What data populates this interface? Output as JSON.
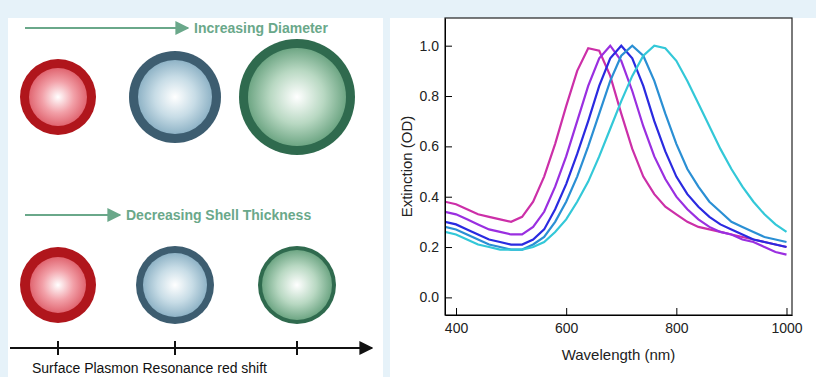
{
  "chart_data": {
    "type": "line",
    "xlabel": "Wavelength (nm)",
    "ylabel": "Extinction (OD)",
    "x": [
      380,
      400,
      420,
      440,
      460,
      480,
      500,
      520,
      540,
      560,
      580,
      600,
      620,
      640,
      660,
      680,
      700,
      720,
      740,
      760,
      780,
      800,
      820,
      840,
      860,
      880,
      900,
      920,
      940,
      960,
      980,
      1000
    ],
    "series": [
      {
        "color": "#cc2fa8",
        "values": [
          0.38,
          0.37,
          0.35,
          0.33,
          0.32,
          0.31,
          0.3,
          0.32,
          0.38,
          0.48,
          0.61,
          0.76,
          0.9,
          0.99,
          0.98,
          0.88,
          0.73,
          0.59,
          0.48,
          0.41,
          0.36,
          0.33,
          0.3,
          0.28,
          0.27,
          0.26,
          0.25,
          0.24,
          0.23,
          0.22,
          0.21,
          0.2
        ]
      },
      {
        "color": "#9a2fe0",
        "values": [
          0.34,
          0.33,
          0.31,
          0.29,
          0.27,
          0.26,
          0.25,
          0.25,
          0.28,
          0.34,
          0.44,
          0.56,
          0.7,
          0.84,
          0.95,
          1.0,
          0.94,
          0.82,
          0.68,
          0.56,
          0.47,
          0.4,
          0.35,
          0.31,
          0.28,
          0.26,
          0.25,
          0.23,
          0.22,
          0.2,
          0.18,
          0.17
        ]
      },
      {
        "color": "#2a2ae0",
        "values": [
          0.3,
          0.29,
          0.27,
          0.25,
          0.23,
          0.22,
          0.21,
          0.21,
          0.23,
          0.27,
          0.35,
          0.45,
          0.57,
          0.7,
          0.84,
          0.95,
          1.0,
          0.95,
          0.84,
          0.7,
          0.58,
          0.48,
          0.41,
          0.36,
          0.32,
          0.29,
          0.27,
          0.25,
          0.23,
          0.22,
          0.21,
          0.2
        ]
      },
      {
        "color": "#2a8fd4",
        "values": [
          0.28,
          0.27,
          0.25,
          0.23,
          0.21,
          0.2,
          0.19,
          0.19,
          0.21,
          0.24,
          0.3,
          0.38,
          0.48,
          0.6,
          0.73,
          0.86,
          0.96,
          1.0,
          0.96,
          0.86,
          0.73,
          0.61,
          0.51,
          0.44,
          0.38,
          0.34,
          0.3,
          0.28,
          0.26,
          0.24,
          0.23,
          0.22
        ]
      },
      {
        "color": "#33c8d8",
        "values": [
          0.26,
          0.25,
          0.23,
          0.21,
          0.2,
          0.19,
          0.19,
          0.19,
          0.2,
          0.22,
          0.26,
          0.31,
          0.38,
          0.46,
          0.56,
          0.67,
          0.78,
          0.88,
          0.96,
          1.0,
          0.99,
          0.94,
          0.86,
          0.77,
          0.68,
          0.59,
          0.51,
          0.44,
          0.38,
          0.33,
          0.29,
          0.26
        ]
      }
    ],
    "xlim": [
      380,
      1010
    ],
    "xticks": [
      400,
      600,
      800,
      1000
    ],
    "ylim": [
      -0.07,
      1.11
    ],
    "yticks": [
      {
        "value": 0,
        "label": "0.0"
      },
      {
        "value": 0.2,
        "label": "0.2"
      },
      {
        "value": 0.4,
        "label": "0.4"
      },
      {
        "value": 0.6,
        "label": "0.6"
      },
      {
        "value": 0.8,
        "label": "0.8"
      },
      {
        "value": 1.0,
        "label": "1.0"
      }
    ],
    "grid": false
  },
  "diagram": {
    "arrows": [
      {
        "label": "Increasing Diameter"
      },
      {
        "label": "Decreasing Shell Thickness"
      }
    ],
    "axis_label": "Surface Plasmon Resonance red shift"
  }
}
